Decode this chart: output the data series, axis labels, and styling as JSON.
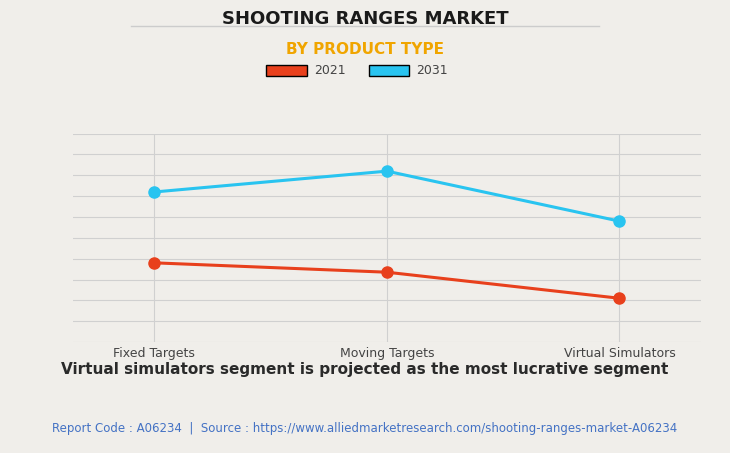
{
  "title": "SHOOTING RANGES MARKET",
  "subtitle": "BY PRODUCT TYPE",
  "categories": [
    "Fixed Targets",
    "Moving Targets",
    "Virtual Simulators"
  ],
  "series_2021": [
    0.38,
    0.335,
    0.21
  ],
  "series_2031": [
    0.72,
    0.82,
    0.58
  ],
  "color_2021": "#e8401c",
  "color_2031": "#29c4f0",
  "legend_labels": [
    "2021",
    "2031"
  ],
  "background_color": "#f0eeea",
  "grid_color": "#d0d0d0",
  "title_fontsize": 13,
  "subtitle_fontsize": 11,
  "subtitle_color": "#f0a500",
  "annotation": "Virtual simulators segment is projected as the most lucrative segment",
  "footer": "Report Code : A06234  |  Source : https://www.alliedmarketresearch.com/shooting-ranges-market-A06234",
  "footer_color": "#4472c4",
  "annotation_fontsize": 11,
  "footer_fontsize": 8.5,
  "tick_fontsize": 9
}
